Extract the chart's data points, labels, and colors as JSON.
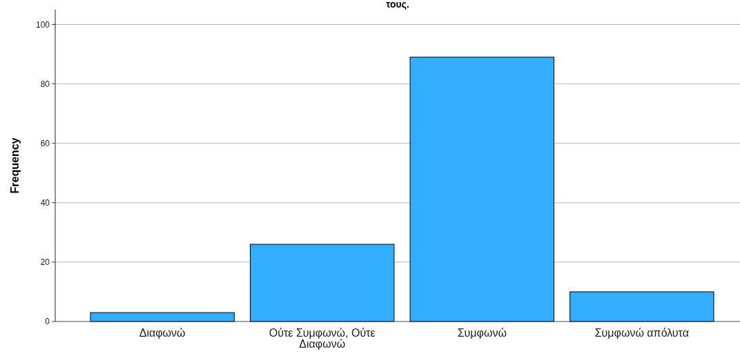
{
  "chart_data": {
    "type": "bar",
    "title": "τους.",
    "ylabel": "Frequency",
    "categories": [
      "Διαφωνώ",
      "Ούτε Συμφωνώ, Ούτε Διαφωνώ",
      "Συμφωνώ",
      "Συμφωνώ απόλυτα"
    ],
    "values": [
      3,
      26,
      89,
      10
    ],
    "color": "#33adff",
    "ylim": [
      0,
      105
    ],
    "yticks": [
      0,
      20,
      40,
      60,
      80,
      100
    ],
    "grid": "y"
  }
}
